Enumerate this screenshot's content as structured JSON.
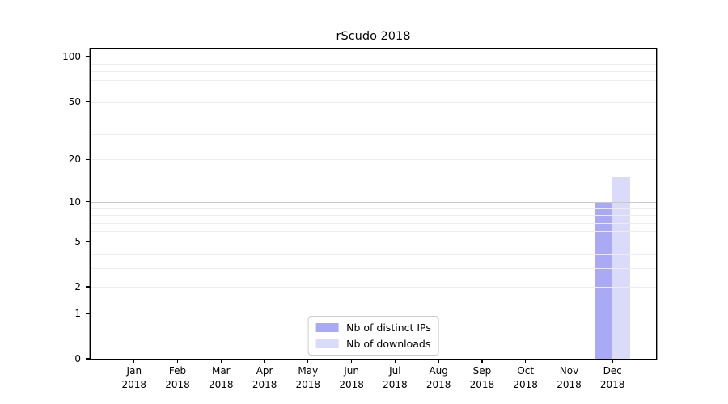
{
  "title": "rScudo 2018",
  "chart_data": {
    "type": "bar",
    "scale": "log1p",
    "title": "rScudo 2018",
    "x_tick_months": [
      "Jan",
      "Feb",
      "Mar",
      "Apr",
      "May",
      "Jun",
      "Jul",
      "Aug",
      "Sep",
      "Oct",
      "Nov",
      "Dec"
    ],
    "x_tick_year": "2018",
    "series": [
      {
        "name": "Nb of distinct IPs",
        "color": "#a9a9f6",
        "values": [
          0,
          0,
          0,
          0,
          0,
          0,
          0,
          0,
          0,
          0,
          0,
          10
        ]
      },
      {
        "name": "Nb of downloads",
        "color": "#dadaf9",
        "values": [
          0,
          0,
          0,
          0,
          0,
          0,
          0,
          0,
          0,
          0,
          0,
          15
        ]
      }
    ],
    "yticks": [
      0,
      1,
      2,
      5,
      10,
      20,
      50,
      100
    ],
    "major_gridlines": [
      1,
      10,
      100
    ],
    "minor_gridlines": [
      2,
      3,
      4,
      5,
      6,
      7,
      8,
      9,
      20,
      30,
      40,
      50,
      60,
      70,
      80,
      90
    ],
    "ylim": [
      0,
      112
    ],
    "grid": true,
    "legend_position": "lower center"
  },
  "colors": {
    "bar_distinct_ips": "#a9a9f6",
    "bar_downloads": "#dadaf9",
    "major_grid": "#c9c9c9",
    "minor_grid": "#ededed",
    "axis": "#000000",
    "background": "#ffffff",
    "legend_border": "#cccccc"
  }
}
